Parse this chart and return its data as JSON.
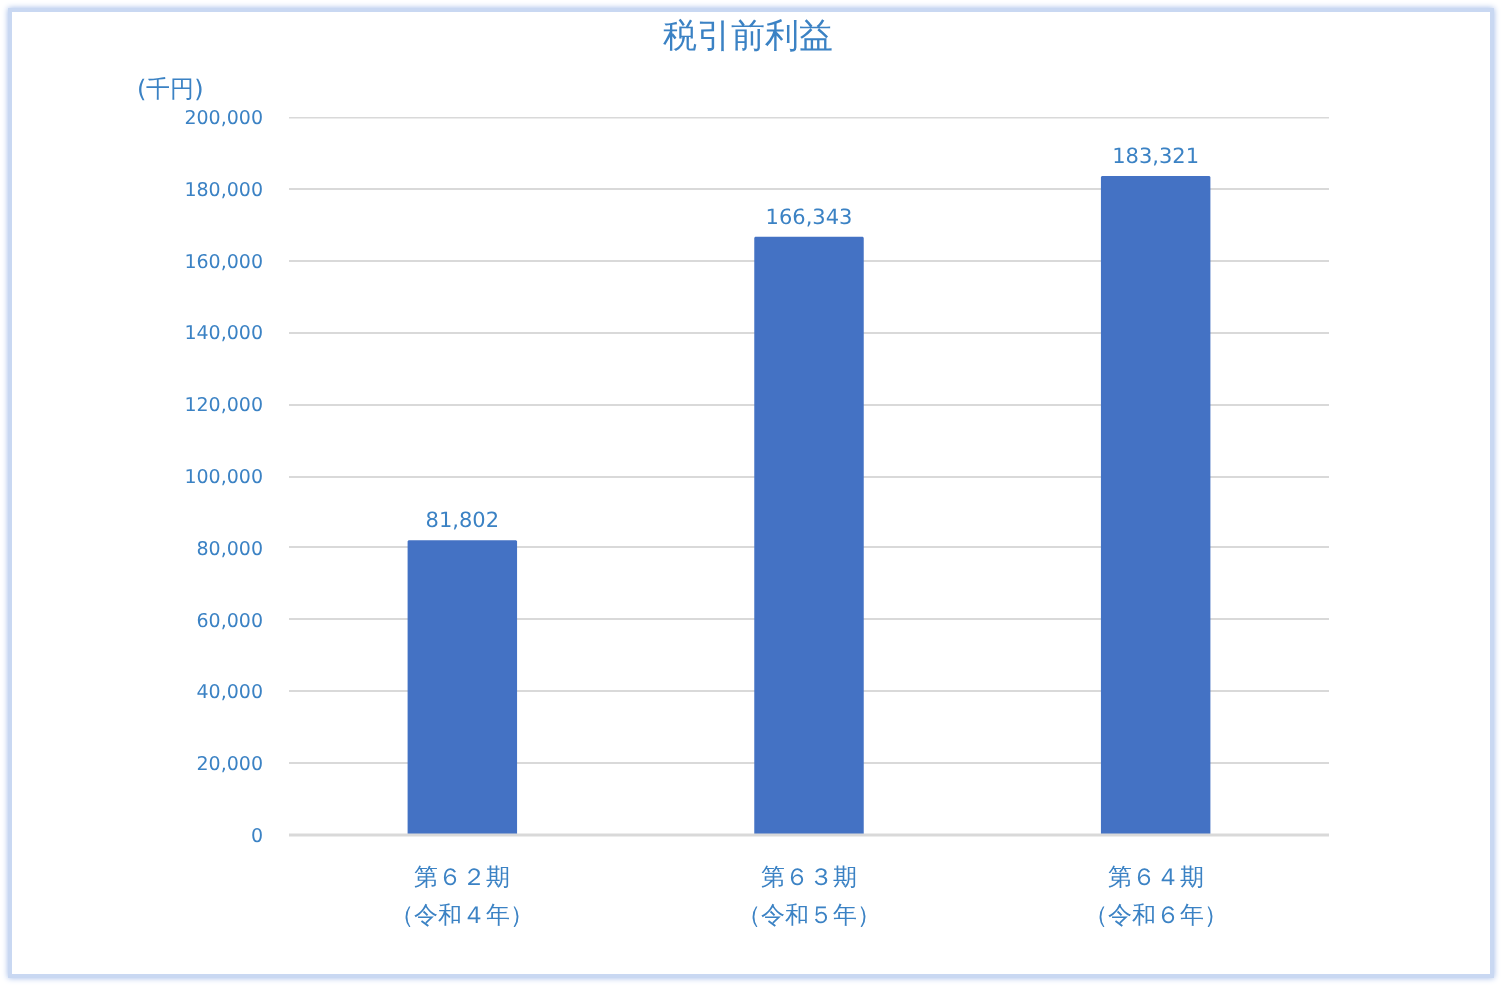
{
  "chart_data": {
    "type": "bar",
    "title": "税引前利益",
    "ylabel": "(千円)",
    "categories": [
      "第６２期（令和４年）",
      "第６３期（令和５年）",
      "第６４期（令和６年）"
    ],
    "values": [
      81802,
      166343,
      183321
    ],
    "value_labels": [
      "81,802",
      "166,343",
      "183,321"
    ],
    "color": "#4472c4",
    "ylim": [
      0,
      200000
    ],
    "yticks": [
      0,
      {
        "value": 20000,
        "label": "20,000"
      },
      {
        "value": 40000,
        "label": "40,000"
      },
      {
        "value": 60000,
        "label": "60,000"
      },
      {
        "value": 80000,
        "label": "80,000"
      },
      {
        "value": 100000,
        "label": "100,000"
      },
      {
        "value": 120000,
        "label": "120,000"
      },
      {
        "value": 140000,
        "label": "140,000"
      },
      {
        "value": 160000,
        "label": "160,000"
      },
      {
        "value": 180000,
        "label": "180,000"
      },
      {
        "value": 200000,
        "label": "200,000"
      }
    ],
    "grid": "y"
  }
}
